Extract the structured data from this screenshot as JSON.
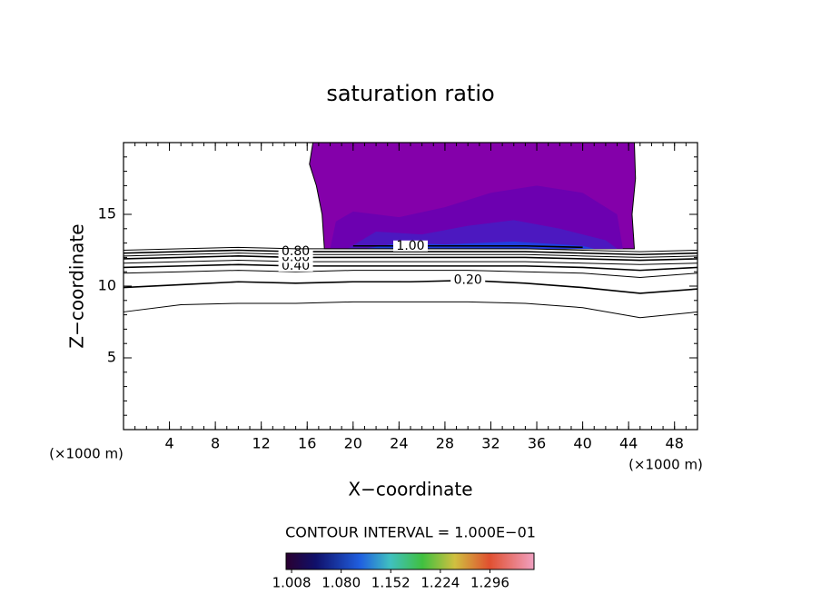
{
  "chart_data": {
    "type": "contour",
    "title": "saturation ratio",
    "xlabel": "X−coordinate",
    "ylabel": "Z−coordinate",
    "x_unit": "(×1000 m)",
    "y_unit": "(×1000 m)",
    "contour_interval_label": "CONTOUR INTERVAL = 1.000E−01",
    "xlim": [
      0,
      50
    ],
    "ylim": [
      0,
      20
    ],
    "xticks": [
      4,
      8,
      12,
      16,
      20,
      24,
      28,
      32,
      36,
      40,
      44,
      48
    ],
    "yticks": [
      5,
      10,
      15
    ],
    "x": [
      0,
      5,
      10,
      15,
      20,
      25,
      30,
      35,
      40,
      45,
      50
    ],
    "series": [
      {
        "color": "#000000",
        "values": [
          8.2,
          8.7,
          8.8,
          8.8,
          8.9,
          8.9,
          8.9,
          8.8,
          8.5,
          7.8,
          8.2
        ]
      },
      {
        "name": "0.20",
        "color": "#000000",
        "values": [
          9.9,
          10.1,
          10.3,
          10.2,
          10.3,
          10.3,
          10.4,
          10.2,
          9.9,
          9.5,
          9.8
        ]
      },
      {
        "color": "#000000",
        "values": [
          10.9,
          11.0,
          11.1,
          11.0,
          11.1,
          11.1,
          11.1,
          11.0,
          10.9,
          10.6,
          10.9
        ]
      },
      {
        "name": "0.40",
        "color": "#000000",
        "values": [
          11.3,
          11.4,
          11.5,
          11.4,
          11.4,
          11.4,
          11.4,
          11.4,
          11.3,
          11.1,
          11.3
        ]
      },
      {
        "color": "#000000",
        "values": [
          11.6,
          11.7,
          11.8,
          11.7,
          11.7,
          11.7,
          11.7,
          11.7,
          11.6,
          11.5,
          11.6
        ]
      },
      {
        "name": "0.60",
        "color": "#000000",
        "values": [
          11.9,
          12.0,
          12.1,
          12.0,
          12.0,
          12.0,
          12.0,
          12.0,
          11.9,
          11.8,
          11.9
        ]
      },
      {
        "color": "#000000",
        "values": [
          12.1,
          12.2,
          12.3,
          12.2,
          12.2,
          12.2,
          12.2,
          12.2,
          12.1,
          12.0,
          12.1
        ]
      },
      {
        "name": "0.80",
        "color": "#000000",
        "values": [
          12.3,
          12.4,
          12.5,
          12.4,
          12.4,
          12.4,
          12.4,
          12.4,
          12.3,
          12.2,
          12.3
        ]
      },
      {
        "color": "#000000",
        "values": [
          12.5,
          12.6,
          12.7,
          12.6,
          12.6,
          12.6,
          12.6,
          12.6,
          12.5,
          12.4,
          12.5
        ]
      },
      {
        "name": "1.00",
        "color": "#000000",
        "values": [
          null,
          null,
          null,
          null,
          12.8,
          12.8,
          12.8,
          12.8,
          12.7,
          null,
          null
        ]
      }
    ],
    "shading": [
      {
        "color": "#8400aa",
        "x": [
          16.5,
          16.2,
          16.8,
          17.3,
          17.5,
          44.5,
          44.3,
          44.6,
          44.5
        ],
        "y": [
          20,
          18.5,
          17,
          15,
          12.6,
          12.6,
          15,
          17.5,
          20
        ]
      },
      {
        "color": "#6c00b0",
        "x": [
          18,
          18.5,
          20,
          24,
          28,
          32,
          36,
          40,
          43,
          43.5
        ],
        "y": [
          12.6,
          14.5,
          15.2,
          14.8,
          15.5,
          16.5,
          17,
          16.5,
          15,
          12.6
        ]
      },
      {
        "color": "#4c18c0",
        "x": [
          19.5,
          22,
          26,
          30,
          34,
          38,
          42,
          43
        ],
        "y": [
          12.6,
          13.8,
          13.6,
          14.2,
          14.6,
          14,
          13.2,
          12.6
        ]
      },
      {
        "color": "#2040e0",
        "x": [
          21,
          24,
          28,
          34,
          40,
          41
        ],
        "y": [
          12.6,
          13,
          12.9,
          13.1,
          12.8,
          12.6
        ]
      }
    ],
    "colorbar": {
      "lim": [
        1.0,
        1.36
      ],
      "ticks": [
        1.008,
        {
          "value": 1.08,
          "label": "1.080"
        },
        1.152,
        1.224,
        1.296
      ]
    }
  }
}
